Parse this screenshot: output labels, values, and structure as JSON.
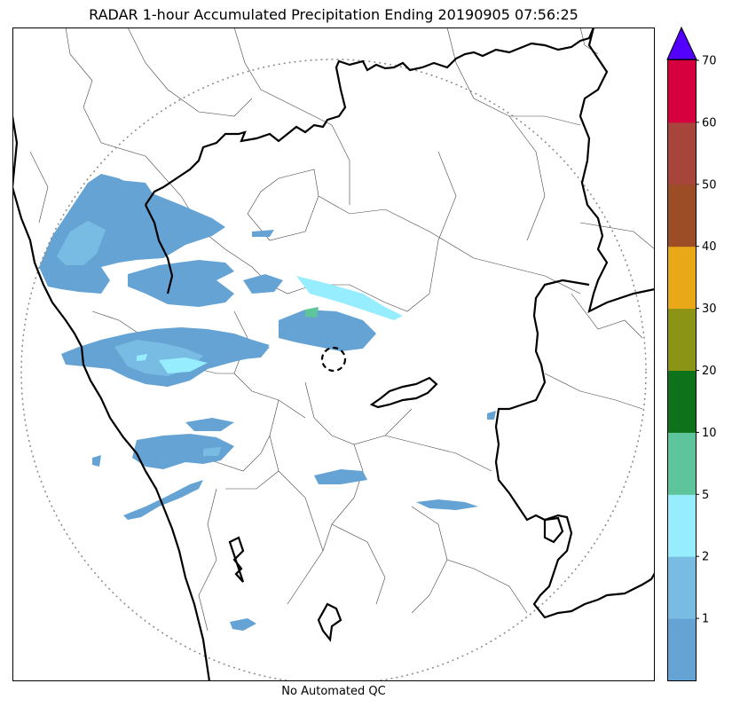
{
  "title": "RADAR 1-hour Accumulated Precipitation Ending 20190905 07:56:25",
  "caption": "No Automated QC",
  "colorbar": {
    "ticks": [
      "1",
      "2",
      "5",
      "10",
      "20",
      "30",
      "40",
      "50",
      "60",
      "70"
    ],
    "bin_colors": [
      "#65a3d4",
      "#79bce3",
      "#96edfd",
      "#5ec49c",
      "#0d7219",
      "#8c9416",
      "#e8a817",
      "#9d4d25",
      "#a7443c",
      "#d6003f"
    ],
    "extend_color": "#5400ff"
  },
  "map": {
    "frame_color": "#000000",
    "range_ring_color": "#888888",
    "state_border_color": "#000000",
    "district_border_color": "#444444",
    "precip_colors": {
      "light": "#65a3d4",
      "moderate": "#79bce3",
      "heavy": "#96edfd",
      "strong": "#5ec49c"
    }
  }
}
